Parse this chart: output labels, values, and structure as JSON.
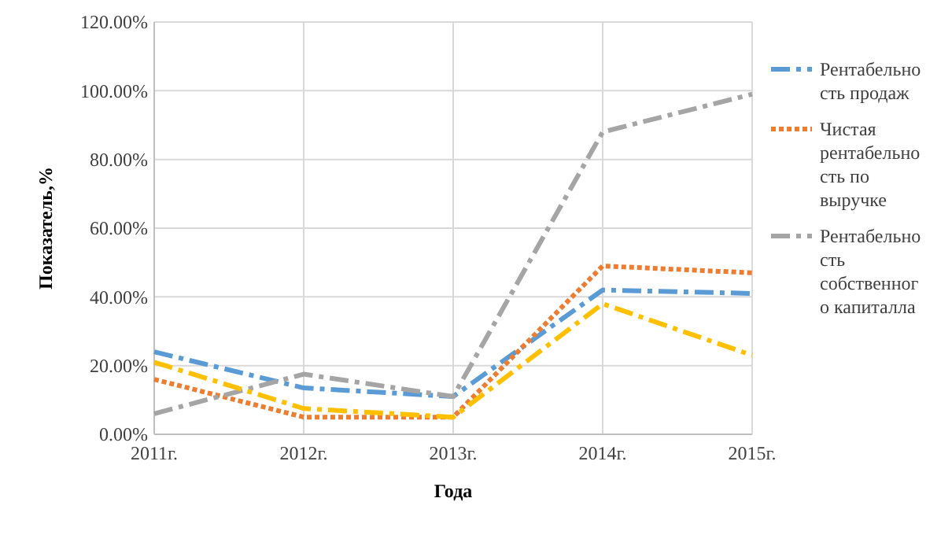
{
  "chart_data": {
    "type": "line",
    "xlabel": "Года",
    "ylabel": "Показатель,%",
    "categories": [
      "2011г.",
      "2012г.",
      "2013г.",
      "2014г.",
      "2015г."
    ],
    "series": [
      {
        "name": "Рентабельность продаж",
        "color": "#5b9bd5",
        "line_style": "dashed",
        "values": [
          24,
          13.5,
          11,
          42,
          41
        ]
      },
      {
        "name": "Чистая рентабельность по выручке",
        "color": "#ed7d31",
        "line_style": "dotted",
        "values": [
          16,
          5,
          5,
          49,
          47
        ]
      },
      {
        "name": "Рентабельность собственного капиталла",
        "color": "#a5a5a5",
        "line_style": "dashed",
        "values": [
          6,
          17.5,
          11,
          88,
          99
        ]
      },
      {
        "color": "#ffc000",
        "line_style": "dashed",
        "values": [
          21,
          7.5,
          5,
          38,
          23
        ]
      }
    ],
    "ylim": [
      0,
      120
    ],
    "yticks": [
      {
        "value": 0,
        "label": "0.00%"
      },
      {
        "value": 20,
        "label": "20.00%"
      },
      {
        "value": 40,
        "label": "40.00%"
      },
      {
        "value": 60,
        "label": "60.00%"
      },
      {
        "value": 80,
        "label": "80.00%"
      },
      {
        "value": 100,
        "label": "100.00%"
      },
      {
        "value": 120,
        "label": "120.00%"
      }
    ],
    "grid": true,
    "legend": "right"
  }
}
